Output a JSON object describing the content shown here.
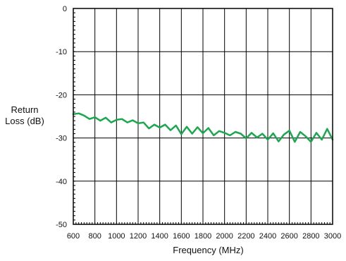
{
  "chart_data": {
    "type": "line",
    "title": "",
    "xlabel": "Frequency (MHz)",
    "ylabel_line1": "Return",
    "ylabel_line2": "Loss (dB)",
    "xlim": [
      600,
      3000
    ],
    "ylim": [
      -50,
      0
    ],
    "x_ticks": [
      600,
      800,
      1000,
      1200,
      1400,
      1600,
      1800,
      2000,
      2200,
      2400,
      2600,
      2800,
      3000
    ],
    "y_ticks": [
      0,
      -10,
      -20,
      -30,
      -40,
      -50
    ],
    "grid": true,
    "line_color": "#1aa84e",
    "series": [
      {
        "x": [
          600,
          650,
          700,
          750,
          800,
          850,
          900,
          950,
          1000,
          1050,
          1100,
          1150,
          1200,
          1250,
          1300,
          1350,
          1400,
          1450,
          1500,
          1550,
          1600,
          1650,
          1700,
          1750,
          1800,
          1850,
          1900,
          1950,
          2000,
          2050,
          2100,
          2150,
          2200,
          2250,
          2300,
          2350,
          2400,
          2450,
          2500,
          2550,
          2600,
          2650,
          2700,
          2750,
          2800,
          2850,
          2900,
          2950,
          3000
        ],
        "y": [
          -24.5,
          -24.3,
          -24.8,
          -25.6,
          -25.2,
          -26.0,
          -25.3,
          -26.4,
          -25.8,
          -25.6,
          -26.4,
          -25.9,
          -26.6,
          -26.4,
          -27.8,
          -26.9,
          -27.6,
          -26.9,
          -28.2,
          -27.1,
          -29.1,
          -27.4,
          -29.0,
          -27.5,
          -28.9,
          -27.7,
          -29.4,
          -28.4,
          -28.8,
          -29.4,
          -28.6,
          -29.0,
          -30.1,
          -28.8,
          -29.9,
          -29.0,
          -30.4,
          -28.9,
          -30.8,
          -29.2,
          -28.3,
          -30.9,
          -28.6,
          -29.6,
          -30.9,
          -28.8,
          -30.4,
          -27.9,
          -30.4
        ]
      }
    ]
  }
}
